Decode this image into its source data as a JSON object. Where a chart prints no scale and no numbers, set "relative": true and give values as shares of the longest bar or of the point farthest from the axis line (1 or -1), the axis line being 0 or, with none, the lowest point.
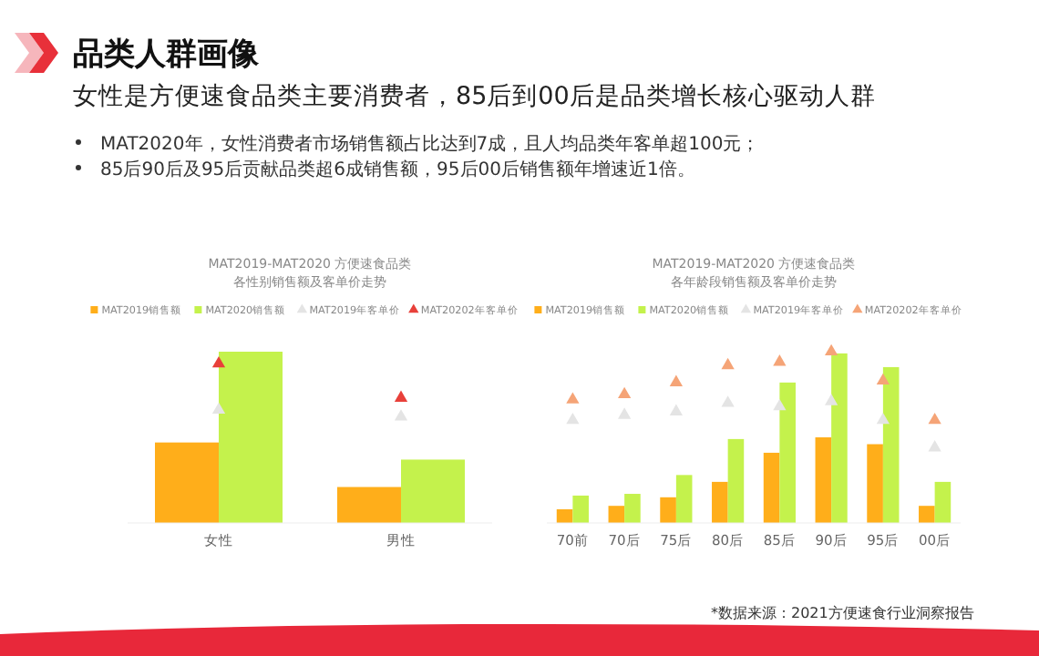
{
  "chart_data": [
    {
      "type": "other",
      "title": "品类人群画像",
      "subtitle": "女性是方便速食品类主要消费者，85后到00后是品类增长核心驱动人群",
      "annotations": [
        "MAT2020年，女性消费者市场销售额占比达到7成，且人均品类年客单超100元；",
        "85后90后及95后贡献品类超6成销售额，95后00后销售额年增速近1倍。",
        "*数据来源：2021方便速食行业洞察报告"
      ]
    },
    {
      "type": "bar",
      "title": "MAT2019-MAT2020 方便速食品类",
      "subtitle": "各性别销售额及客单价走势",
      "relative": true,
      "legend": "top",
      "categories": [
        "女性",
        "男性"
      ],
      "series": [
        {
          "name": "MAT2019销售额",
          "color": "#ffae1a",
          "values": [
            0.47,
            0.21
          ]
        },
        {
          "name": "MAT2020销售额",
          "color": "#c4f24c",
          "values": [
            1,
            0.37
          ]
        },
        {
          "name": "MAT2019年客单价",
          "type": "scatter",
          "marker": "triangle",
          "color": "#e4e4e4",
          "values": [
            0.66,
            0.62
          ]
        },
        {
          "name": "MAT20202年客单价",
          "type": "scatter",
          "marker": "triangle",
          "color": "#e8403a",
          "values": [
            0.93,
            0.73
          ]
        }
      ]
    },
    {
      "type": "bar",
      "title": "MAT2019-MAT2020 方便速食品类",
      "subtitle": "各年龄段销售额及客单价走势",
      "relative": true,
      "legend": "top",
      "categories": [
        "70前",
        "70后",
        "75后",
        "80后",
        "85后",
        "90后",
        "95后",
        "00后"
      ],
      "series": [
        {
          "name": "MAT2019销售额",
          "color": "#ffae1a",
          "values": [
            0.08,
            0.1,
            0.15,
            0.24,
            0.41,
            0.5,
            0.46,
            0.1
          ]
        },
        {
          "name": "MAT2020销售额",
          "color": "#c4f24c",
          "values": [
            0.16,
            0.17,
            0.28,
            0.49,
            0.82,
            0.99,
            0.91,
            0.24
          ]
        },
        {
          "name": "MAT2019年客单价",
          "type": "scatter",
          "marker": "triangle",
          "color": "#e4e4e4",
          "values": [
            0.6,
            0.63,
            0.65,
            0.7,
            0.68,
            0.71,
            0.6,
            0.44
          ]
        },
        {
          "name": "MAT20202年客单价",
          "type": "scatter",
          "marker": "triangle",
          "color": "#f5a477",
          "values": [
            0.72,
            0.75,
            0.82,
            0.92,
            0.94,
            1,
            0.83,
            0.6
          ]
        }
      ]
    }
  ]
}
